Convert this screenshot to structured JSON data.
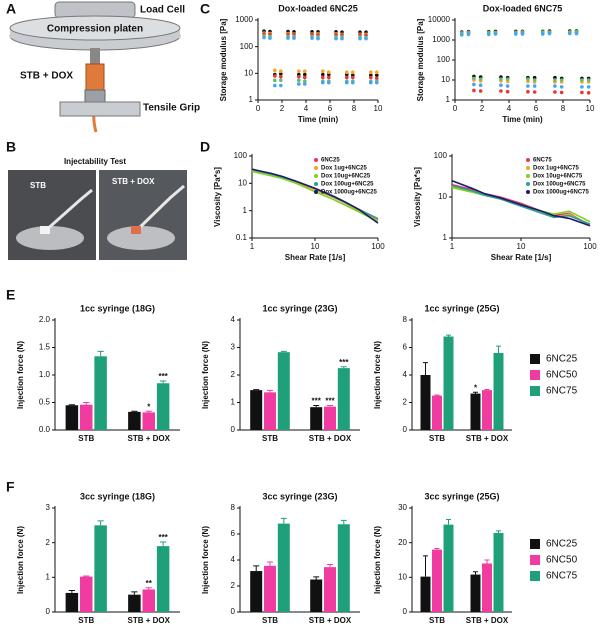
{
  "panel_labels": [
    "A",
    "B",
    "C",
    "D",
    "E",
    "F"
  ],
  "diagram": {
    "load_cell": "Load Cell",
    "platen": "Compression platen",
    "sample": "STB + DOX",
    "grip": "Tensile Grip"
  },
  "photos": {
    "title": "Injectability Test",
    "left": "STB",
    "right": "STB + DOX"
  },
  "chart_data": [
    {
      "type": "scatter",
      "title": "Dox-loaded 6NC25",
      "xlabel": "Time (min)",
      "ylabel": "Storage modulus [Pa]",
      "ylog": true,
      "xlim": [
        0,
        10
      ],
      "xticks": [
        0,
        2,
        4,
        6,
        8,
        10
      ],
      "ylim": [
        1,
        1000
      ],
      "yticks": [
        1,
        10,
        100,
        1000
      ],
      "x": [
        0.5,
        1.0,
        1.4,
        1.9,
        2.5,
        3.0,
        3.4,
        3.9,
        4.5,
        5.0,
        5.4,
        5.9,
        6.5,
        7.0,
        7.4,
        7.9,
        8.5,
        9.0,
        9.4,
        9.9
      ],
      "series": [
        {
          "color": "#111111",
          "values": [
            380,
            370,
            9,
            9.5,
            370,
            360,
            9,
            9,
            360,
            360,
            9,
            9,
            360,
            350,
            9,
            8.5,
            350,
            350,
            8.5,
            8.5
          ]
        },
        {
          "color": "#f5a623",
          "values": [
            320,
            310,
            13,
            12,
            310,
            300,
            12,
            12,
            300,
            300,
            12,
            11,
            300,
            290,
            11,
            11,
            290,
            290,
            11,
            11
          ]
        },
        {
          "color": "#e53935",
          "values": [
            300,
            290,
            8,
            7.5,
            290,
            290,
            7.5,
            7,
            290,
            280,
            7,
            7,
            280,
            280,
            7,
            7,
            280,
            270,
            7,
            6.5
          ]
        },
        {
          "color": "#66bb6a",
          "values": [
            250,
            240,
            5.5,
            5.5,
            240,
            240,
            5.5,
            5,
            240,
            230,
            5,
            5,
            230,
            230,
            5,
            5,
            230,
            220,
            5,
            5
          ]
        },
        {
          "color": "#42a5f5",
          "values": [
            220,
            210,
            3.5,
            3.5,
            210,
            210,
            4,
            4,
            210,
            200,
            4.5,
            4.5,
            200,
            200,
            4.5,
            4.5,
            200,
            200,
            4.5,
            4.5
          ]
        }
      ]
    },
    {
      "type": "scatter",
      "title": "Dox-loaded 6NC75",
      "xlabel": "Time (min)",
      "ylabel": "Storage modulus [Pa]",
      "ylog": true,
      "xlim": [
        0,
        10
      ],
      "xticks": [
        0,
        2,
        4,
        6,
        8,
        10
      ],
      "ylim": [
        1,
        10000
      ],
      "yticks": [
        1,
        10,
        100,
        1000,
        10000
      ],
      "x": [
        0.5,
        1.0,
        1.4,
        1.9,
        2.5,
        3.0,
        3.4,
        3.9,
        4.5,
        5.0,
        5.4,
        5.9,
        6.5,
        7.0,
        7.4,
        7.9,
        8.5,
        9.0,
        9.4,
        9.9
      ],
      "series": [
        {
          "color": "#111111",
          "values": [
            2500,
            2600,
            15,
            14,
            2600,
            2700,
            14,
            13,
            2700,
            2700,
            13,
            13,
            2700,
            2800,
            13,
            12,
            2800,
            2800,
            12,
            12
          ]
        },
        {
          "color": "#f5a623",
          "values": [
            2200,
            2300,
            10,
            9,
            2300,
            2400,
            9,
            8.5,
            2400,
            2400,
            8.5,
            8,
            2400,
            2500,
            8,
            8,
            2500,
            2500,
            8,
            8
          ]
        },
        {
          "color": "#e53935",
          "values": [
            2000,
            2100,
            3,
            2.8,
            2100,
            2200,
            2.8,
            2.6,
            2200,
            2200,
            2.6,
            2.5,
            2200,
            2300,
            2.5,
            2.4,
            2300,
            2300,
            2.4,
            2.3
          ]
        },
        {
          "color": "#66bb6a",
          "values": [
            2300,
            2400,
            12,
            11,
            2400,
            2400,
            11,
            11,
            2400,
            2500,
            11,
            10,
            2500,
            2500,
            10,
            10,
            2500,
            2600,
            10,
            10
          ]
        },
        {
          "color": "#42a5f5",
          "values": [
            1800,
            1900,
            6,
            5.5,
            1900,
            2000,
            5.5,
            5,
            2000,
            2000,
            5,
            5,
            2000,
            2100,
            5,
            4.5,
            2100,
            2100,
            4.5,
            4.5
          ]
        }
      ]
    },
    {
      "type": "line",
      "xlabel": "Shear Rate [1/s]",
      "ylabel": "Viscosity [Pa*s]",
      "xlog": true,
      "ylog": true,
      "xlim": [
        1,
        100
      ],
      "xticks": [
        1,
        10,
        100
      ],
      "ylim": [
        0.1,
        100
      ],
      "yticks": [
        0.1,
        1,
        10,
        100
      ],
      "x": [
        1,
        2,
        3,
        5,
        10,
        20,
        30,
        50,
        100
      ],
      "series": [
        {
          "name": "6NC25",
          "color": "#e8336b",
          "values": [
            28,
            20,
            16,
            11,
            6,
            3,
            2,
            1.1,
            0.5
          ]
        },
        {
          "name": "Dox 1ug+6NC25",
          "color": "#f5a623",
          "values": [
            30,
            21,
            17,
            11,
            6,
            3,
            1.9,
            1.0,
            0.45
          ]
        },
        {
          "name": "Dox 10ug+6NC25",
          "color": "#7ed321",
          "values": [
            27,
            19,
            15,
            10,
            5,
            2.5,
            1.6,
            0.9,
            0.4
          ]
        },
        {
          "name": "Dox 100ug+6NC25",
          "color": "#2aa198",
          "values": [
            32,
            22,
            17,
            12,
            6.5,
            3.2,
            2,
            1.1,
            0.5
          ]
        },
        {
          "name": "Dox 1000ug+6NC25",
          "color": "#1a1a6e",
          "values": [
            33,
            23,
            18,
            12,
            6.5,
            3.3,
            2.1,
            1.1,
            0.35
          ]
        }
      ]
    },
    {
      "type": "line",
      "xlabel": "Shear Rate [1/s]",
      "ylabel": "Viscosity [Pa*s]",
      "xlog": true,
      "ylog": true,
      "xlim": [
        1,
        100
      ],
      "xticks": [
        1,
        10,
        100
      ],
      "ylim": [
        1,
        100
      ],
      "yticks": [
        1,
        10,
        100
      ],
      "x": [
        1,
        2,
        3,
        5,
        10,
        20,
        30,
        50,
        100
      ],
      "series": [
        {
          "name": "6NC75",
          "color": "#e8336b",
          "values": [
            20,
            15,
            12,
            10,
            7,
            4.5,
            3.5,
            4,
            2
          ]
        },
        {
          "name": "Dox 1ug+6NC75",
          "color": "#f5a623",
          "values": [
            18,
            14,
            11,
            9,
            6,
            4,
            3.2,
            3.8,
            2
          ]
        },
        {
          "name": "Dox 10ug+6NC75",
          "color": "#7ed321",
          "values": [
            17,
            13,
            11,
            9,
            6.5,
            4.5,
            3.8,
            4.5,
            2.5
          ]
        },
        {
          "name": "Dox 100ug+6NC75",
          "color": "#2aa198",
          "values": [
            19,
            14,
            11,
            9,
            6,
            4,
            3.2,
            3.5,
            2.2
          ]
        },
        {
          "name": "Dox 1000ug+6NC75",
          "color": "#1a1a6e",
          "values": [
            25,
            16,
            12,
            9.5,
            6.5,
            4.5,
            3.5,
            3,
            2
          ]
        }
      ]
    },
    {
      "type": "bar",
      "title": "1cc syringe (18G)",
      "ylabel": "Injection force (N)",
      "categories": [
        "STB",
        "STB + DOX"
      ],
      "ylim": [
        0,
        2
      ],
      "yticks": [
        {
          "value": 0,
          "label": "0.0"
        },
        {
          "value": 0.5,
          "label": "0.5"
        },
        {
          "value": 1,
          "label": "1.0"
        },
        {
          "value": 1.5,
          "label": "1.5"
        },
        {
          "value": 2,
          "label": "2.0"
        }
      ],
      "series": [
        {
          "color": "#111111",
          "values": [
            0.45,
            0.33
          ],
          "errors": [
            0.01,
            0.01
          ],
          "annotations": [
            null,
            null
          ]
        },
        {
          "color": "#f03ca0",
          "values": [
            0.46,
            0.32
          ],
          "errors": [
            0.04,
            0.02
          ],
          "annotations": [
            null,
            "*"
          ]
        },
        {
          "color": "#20a07a",
          "values": [
            1.34,
            0.85
          ],
          "errors": [
            0.09,
            0.04
          ],
          "annotations": [
            null,
            "***"
          ]
        }
      ]
    },
    {
      "type": "bar",
      "title": "1cc syringe (23G)",
      "ylabel": "Injection force (N)",
      "categories": [
        "STB",
        "STB + DOX"
      ],
      "ylim": [
        0,
        4
      ],
      "yticks": [
        0,
        1,
        2,
        3,
        4
      ],
      "series": [
        {
          "color": "#111111",
          "values": [
            1.45,
            0.83
          ],
          "errors": [
            0.02,
            0.06
          ],
          "annotations": [
            null,
            "***"
          ]
        },
        {
          "color": "#f03ca0",
          "values": [
            1.37,
            0.85
          ],
          "errors": [
            0.07,
            0.04
          ],
          "annotations": [
            null,
            "***"
          ]
        },
        {
          "color": "#20a07a",
          "values": [
            2.83,
            2.25
          ],
          "errors": [
            0.03,
            0.05
          ],
          "annotations": [
            null,
            "***"
          ]
        }
      ]
    },
    {
      "type": "bar",
      "title": "1cc syringe (25G)",
      "ylabel": "Injection force (N)",
      "categories": [
        "STB",
        "STB + DOX"
      ],
      "ylim": [
        0,
        8
      ],
      "yticks": [
        0,
        2,
        4,
        6,
        8
      ],
      "series": [
        {
          "name": "6NC25",
          "color": "#111111",
          "values": [
            4.0,
            2.65
          ],
          "errors": [
            0.9,
            0.1
          ],
          "annotations": [
            null,
            "*"
          ]
        },
        {
          "name": "6NC50",
          "color": "#f03ca0",
          "values": [
            2.5,
            2.9
          ],
          "errors": [
            0.05,
            0.05
          ],
          "annotations": [
            null,
            null
          ]
        },
        {
          "name": "6NC75",
          "color": "#20a07a",
          "values": [
            6.8,
            5.6
          ],
          "errors": [
            0.1,
            0.5
          ],
          "annotations": [
            null,
            null
          ]
        }
      ]
    },
    {
      "type": "bar",
      "title": "3cc syringe (18G)",
      "ylabel": "Injection force (N)",
      "categories": [
        "STB",
        "STB + DOX"
      ],
      "ylim": [
        0,
        3
      ],
      "yticks": [
        0,
        1,
        2,
        3
      ],
      "series": [
        {
          "color": "#111111",
          "values": [
            0.55,
            0.5
          ],
          "errors": [
            0.07,
            0.08
          ],
          "annotations": [
            null,
            null
          ]
        },
        {
          "color": "#f03ca0",
          "values": [
            1.02,
            0.65
          ],
          "errors": [
            0.02,
            0.05
          ],
          "annotations": [
            null,
            "**"
          ]
        },
        {
          "color": "#20a07a",
          "values": [
            2.5,
            1.9
          ],
          "errors": [
            0.13,
            0.12
          ],
          "annotations": [
            null,
            "***"
          ]
        }
      ]
    },
    {
      "type": "bar",
      "title": "3cc syringe (23G)",
      "ylabel": "Injection force (N)",
      "categories": [
        "STB",
        "STB + DOX"
      ],
      "ylim": [
        0,
        8
      ],
      "yticks": [
        0,
        2,
        4,
        6,
        8
      ],
      "series": [
        {
          "color": "#111111",
          "values": [
            3.15,
            2.5
          ],
          "errors": [
            0.4,
            0.2
          ],
          "annotations": [
            null,
            null
          ]
        },
        {
          "color": "#f03ca0",
          "values": [
            3.55,
            3.45
          ],
          "errors": [
            0.3,
            0.2
          ],
          "annotations": [
            null,
            null
          ]
        },
        {
          "color": "#20a07a",
          "values": [
            6.8,
            6.75
          ],
          "errors": [
            0.4,
            0.3
          ],
          "annotations": [
            null,
            null
          ]
        }
      ]
    },
    {
      "type": "bar",
      "title": "3cc syringe (25G)",
      "ylabel": "Injection force (N)",
      "categories": [
        "STB",
        "STB + DOX"
      ],
      "ylim": [
        0,
        30
      ],
      "yticks": [
        0,
        10,
        20,
        30
      ],
      "series": [
        {
          "name": "6NC25",
          "color": "#111111",
          "values": [
            10.2,
            10.8
          ],
          "errors": [
            6,
            0.8
          ],
          "annotations": [
            null,
            null
          ]
        },
        {
          "name": "6NC50",
          "color": "#f03ca0",
          "values": [
            18,
            14
          ],
          "errors": [
            0.3,
            1
          ],
          "annotations": [
            null,
            null
          ]
        },
        {
          "name": "6NC75",
          "color": "#20a07a",
          "values": [
            25.2,
            22.8
          ],
          "errors": [
            1.5,
            0.6
          ],
          "annotations": [
            null,
            null
          ]
        }
      ]
    }
  ]
}
